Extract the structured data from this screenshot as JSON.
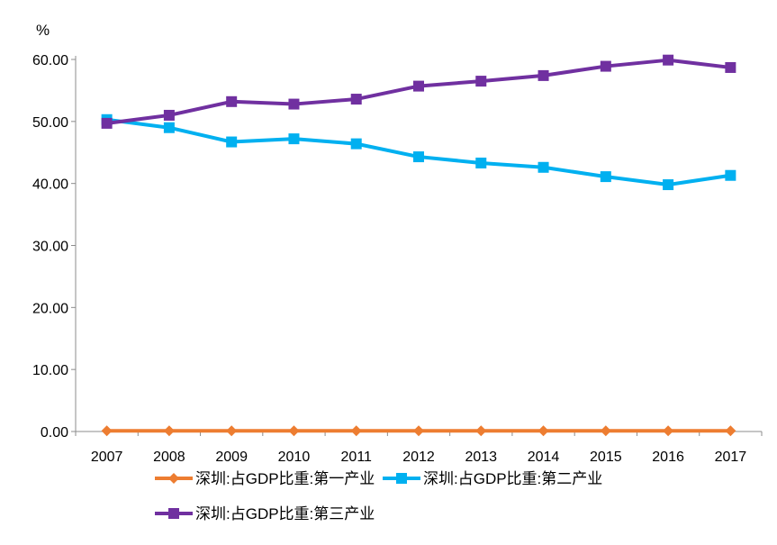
{
  "chart_data": {
    "type": "line",
    "ylabel": "%",
    "ylim": [
      0,
      60
    ],
    "yticks": [
      "0.00",
      "10.00",
      "20.00",
      "30.00",
      "40.00",
      "50.00",
      "60.00"
    ],
    "categories": [
      "2007",
      "2008",
      "2009",
      "2010",
      "2011",
      "2012",
      "2013",
      "2014",
      "2015",
      "2016",
      "2017"
    ],
    "grid": false,
    "legend_position": "bottom",
    "series": [
      {
        "name": "深圳:占GDP比重:第一产业",
        "color": "#ED7D31",
        "marker": "diamond",
        "values": [
          0.1,
          0.1,
          0.1,
          0.1,
          0.1,
          0.1,
          0.1,
          0.1,
          0.1,
          0.1,
          0.1
        ]
      },
      {
        "name": "深圳:占GDP比重:第二产业",
        "color": "#00B0F0",
        "marker": "square",
        "values": [
          50.3,
          49.0,
          46.7,
          47.2,
          46.4,
          44.3,
          43.3,
          42.6,
          41.1,
          39.8,
          41.3
        ]
      },
      {
        "name": "深圳:占GDP比重:第三产业",
        "color": "#7030A0",
        "marker": "square",
        "values": [
          49.7,
          51.0,
          53.2,
          52.8,
          53.6,
          55.7,
          56.5,
          57.4,
          58.9,
          59.9,
          58.7
        ]
      }
    ]
  }
}
